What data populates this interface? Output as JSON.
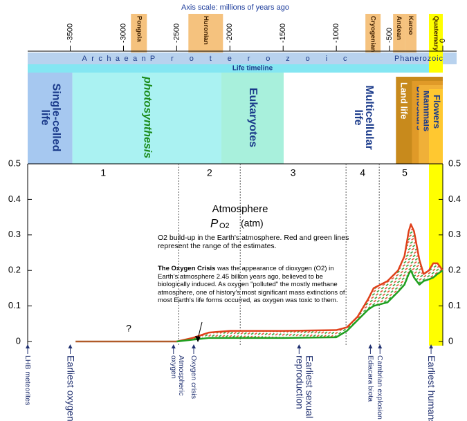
{
  "chart_data": {
    "type": "line",
    "title": "Axis scale: millions of years ago",
    "xlim": [
      -3900,
      0
    ],
    "xticks": [
      -3500,
      -3000,
      -2500,
      -2000,
      -1500,
      -1000,
      -500,
      0
    ],
    "ylim": [
      0,
      0.5
    ],
    "yticks": [
      0,
      0.1,
      0.2,
      0.3,
      0.4,
      0.5
    ],
    "chart_title": "Atmosphere",
    "ylabel_symbol": "P",
    "ylabel_subscript": "O2",
    "ylabel_unit": "(atm)",
    "note": "O2 build-up in the Earth's atmosphere. Red and green lines represent the range of the estimates.",
    "crisis_title": "The Oxygen Crisis",
    "crisis_text": "was the appearance of dioxygen (O2) in Earth's atmosphere 2.45 billion years ago, believed to be biologically induced. As oxygen \"polluted\" the mostly methane atmosphere, one of history's most  significant mass extinctions of most Earth's life forms occurred, as oxygen was toxic to them.",
    "question": "?",
    "life_title": "Life timeline",
    "series": [
      {
        "color": "#e0401a",
        "x": [
          -2500,
          -2350,
          -2200,
          -2000,
          -1500,
          -1000,
          -900,
          -800,
          -700,
          -650,
          -520,
          -420,
          -360,
          -320,
          -300,
          -270,
          -220,
          -180,
          -130,
          -90,
          -50,
          0
        ],
        "values": [
          0,
          0.01,
          0.025,
          0.03,
          0.03,
          0.032,
          0.04,
          0.07,
          0.12,
          0.15,
          0.17,
          0.2,
          0.24,
          0.31,
          0.33,
          0.31,
          0.23,
          0.19,
          0.2,
          0.22,
          0.22,
          0.2
        ]
      },
      {
        "color": "#20a020",
        "x": [
          -2500,
          -2350,
          -2200,
          -2000,
          -1500,
          -1000,
          -900,
          -800,
          -700,
          -650,
          -520,
          -420,
          -360,
          -320,
          -300,
          -270,
          -220,
          -180,
          -130,
          -90,
          -50,
          0
        ],
        "values": [
          0,
          0.005,
          0.01,
          0.01,
          0.01,
          0.012,
          0.03,
          0.06,
          0.09,
          0.1,
          0.11,
          0.14,
          0.16,
          0.19,
          0.2,
          0.18,
          0.16,
          0.17,
          0.175,
          0.18,
          0.19,
          0.2
        ]
      },
      {
        "color": "#b05a28",
        "x": [
          -3450,
          -2500
        ],
        "values": [
          0,
          0
        ]
      }
    ],
    "eons": [
      {
        "label": "Archaean",
        "start": -3390,
        "end": -2790
      },
      {
        "label": "Proterozoic",
        "start": -2750,
        "end": -900
      },
      {
        "label": "Phanerozoic",
        "start": -455,
        "end": 0
      }
    ],
    "glaciations": [
      {
        "label": "Pongola",
        "start": -2930,
        "end": -2780,
        "color": "#f5c27e"
      },
      {
        "label": "Huronian",
        "start": -2390,
        "end": -2065,
        "color": "#f5c27e"
      },
      {
        "label": "Cryogenian",
        "start": -727,
        "end": -584,
        "color": "#f5c27e"
      },
      {
        "label": "Andean",
        "start": -467,
        "end": -357,
        "color": "#f5c27e"
      },
      {
        "label": "Karoo",
        "start": -357,
        "end": -247,
        "color": "#f5c27e"
      },
      {
        "label": "Quaternary",
        "start": -130,
        "end": 0,
        "color": "#ffff00",
        "extends_to_plot": true
      }
    ],
    "life": [
      {
        "lines": [
          "Single-celled",
          "life"
        ],
        "start": -3900,
        "end": -3480,
        "color": "#a6c8f0",
        "text_color": "#1a3a8a"
      },
      {
        "lines": [
          "photosynthesis"
        ],
        "start": -3480,
        "end": -2080,
        "color": "#aaf2f2",
        "text_color": "#1a8a1a",
        "italic": true
      },
      {
        "lines": [
          "Eukaryotes"
        ],
        "start": -2080,
        "end": -1495,
        "color": "#a8f0dc",
        "text_color": "#1a3a8a"
      },
      {
        "lines": [
          "Multicellular",
          "life"
        ],
        "start": -1495,
        "end": 0,
        "color": "#ffffff",
        "text_color": "#1a3a8a"
      },
      {
        "lines": [
          "Land life"
        ],
        "start": -440,
        "end": 0,
        "color": "#c88a1c",
        "text_color": "#ffffff"
      },
      {
        "lines": [
          "Dinosaurs"
        ],
        "start": -290,
        "end": 0,
        "color": "#e09a28",
        "text_color": "#1a3a8a"
      },
      {
        "lines": [
          "Mammals"
        ],
        "start": -225,
        "end": 0,
        "color": "#f0b038",
        "text_color": "#1a3a8a"
      },
      {
        "lines": [
          "Flowers"
        ],
        "start": -130,
        "end": 0,
        "color": "#ffc830",
        "text_color": "#1a3a8a"
      }
    ],
    "stages": [
      {
        "label": "1",
        "start": -3900,
        "end": -2480
      },
      {
        "label": "2",
        "start": -2480,
        "end": -1903
      },
      {
        "label": "3",
        "start": -1903,
        "end": -909
      },
      {
        "label": "4",
        "start": -909,
        "end": -597
      },
      {
        "label": "5",
        "start": -597,
        "end": -117
      }
    ],
    "events": [
      {
        "lines": [
          "LHB meteorites"
        ],
        "x": -3900
      },
      {
        "lines": [
          "Earliest oxygen"
        ],
        "x": -3500,
        "big": true
      },
      {
        "lines": [
          "Atmospheric",
          "oxygen"
        ],
        "x": -2530
      },
      {
        "lines": [
          "Oxygen crisis"
        ],
        "x": -2340
      },
      {
        "lines": [
          "Earliest sexual",
          "reproduction"
        ],
        "x": -1350,
        "big": true
      },
      {
        "lines": [
          "Ediacara biota"
        ],
        "x": -680
      },
      {
        "lines": [
          "Cambrian explosion"
        ],
        "x": -590
      },
      {
        "lines": [
          "Earliest humans"
        ],
        "x": -110,
        "big": true
      }
    ]
  }
}
